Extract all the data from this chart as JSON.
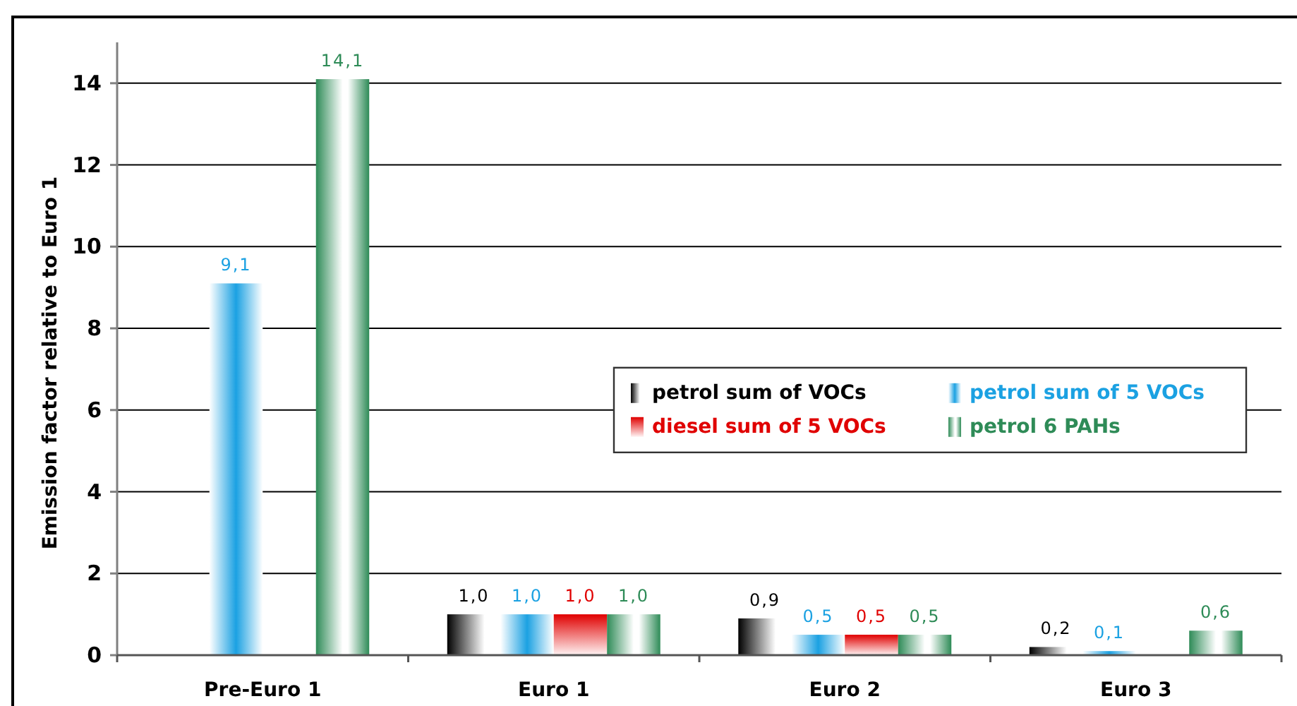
{
  "chart_data": {
    "type": "bar",
    "ylabel": "Emission factor relative to Euro 1",
    "categories": [
      "Pre-Euro 1",
      "Euro 1",
      "Euro 2",
      "Euro 3"
    ],
    "series": [
      {
        "name": "petrol sum of VOCs",
        "color": "#000000",
        "values": [
          null,
          1.0,
          0.9,
          0.2
        ],
        "value_labels": [
          null,
          "1,0",
          "0,9",
          "0,2"
        ]
      },
      {
        "name": "petrol sum of 5 VOCs",
        "color": "#1ba1e2",
        "values": [
          9.1,
          1.0,
          0.5,
          0.1
        ],
        "value_labels": [
          "9,1",
          "1,0",
          "0,5",
          "0,1"
        ]
      },
      {
        "name": "diesel sum of 5 VOCs",
        "color": "#e00000",
        "values": [
          null,
          1.0,
          0.5,
          null
        ],
        "value_labels": [
          null,
          "1,0",
          "0,5",
          null
        ]
      },
      {
        "name": "petrol 6 PAHs",
        "color": "#2e8b57",
        "values": [
          14.1,
          1.0,
          0.5,
          0.6
        ],
        "value_labels": [
          "14,1",
          "1,0",
          "0,5",
          "0,6"
        ]
      }
    ],
    "ylim": [
      0,
      15
    ],
    "yticks": [
      0,
      2,
      4,
      6,
      8,
      10,
      12,
      14
    ],
    "grid": "y",
    "legend": "right"
  }
}
